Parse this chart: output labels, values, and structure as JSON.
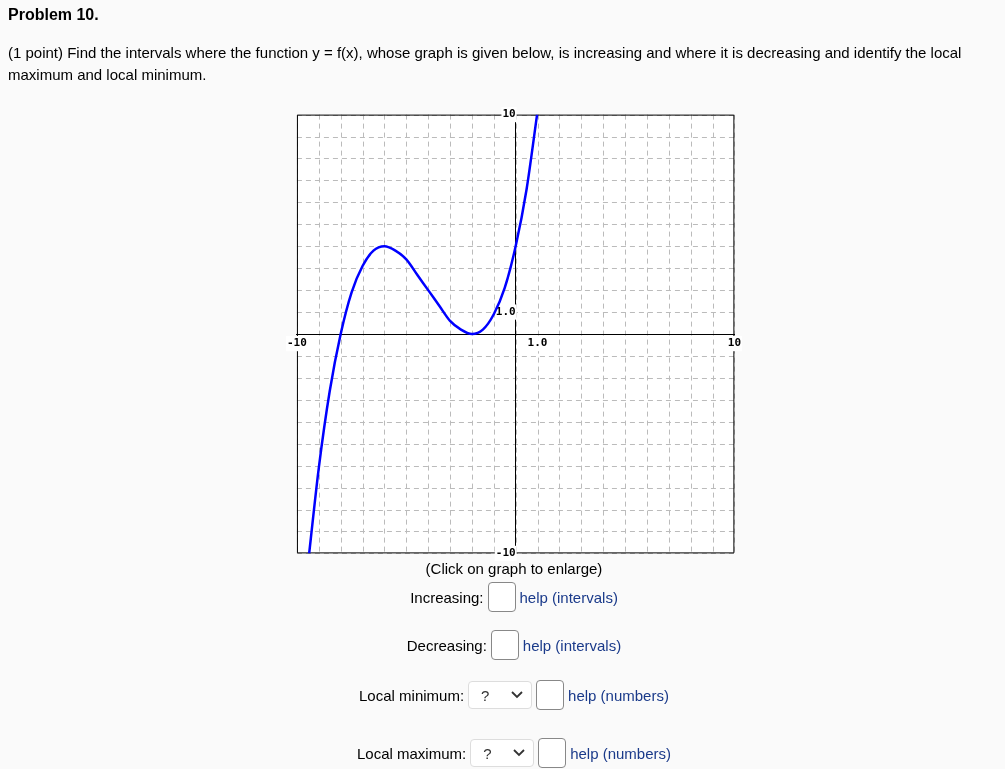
{
  "chart_data": {
    "type": "line",
    "title": "Problem 10.",
    "subtitle": "(1 point) Find the intervals where the function y = f(x), whose graph is given below, is increasing and where it is decreasing and identify the local maximum and local minimum.",
    "annotations": [
      "(Click on graph to enlarge)",
      "Increasing:",
      "help (intervals)",
      "Decreasing:",
      "help (intervals)",
      "Local minimum:",
      "?",
      "help (numbers)",
      "Local maximum:",
      "?",
      "help (numbers)"
    ],
    "x": [
      -9.44,
      -9,
      -8.5,
      -8,
      -7.5,
      -7,
      -6.5,
      -6,
      -5.5,
      -5,
      -4.5,
      -4,
      -3.5,
      -3,
      -2.5,
      -2,
      -1.5,
      -1,
      -0.5,
      0,
      0.5,
      0.98
    ],
    "values": [
      -10,
      -6.1,
      -2.6,
      0,
      1.9,
      3.1,
      3.8,
      4,
      3.8,
      3.4,
      2.7,
      2,
      1.3,
      0.6,
      0.2,
      0,
      0.2,
      0.9,
      2.1,
      4,
      6.6,
      10
    ],
    "color": "#0000ff",
    "xlim": [
      -10,
      10
    ],
    "ylim": [
      -10,
      10
    ],
    "xticks": [
      {
        "value": -10,
        "label": "-10"
      },
      {
        "value": -9,
        "label": null
      },
      {
        "value": -8,
        "label": null
      },
      {
        "value": -7,
        "label": null
      },
      {
        "value": -6,
        "label": null
      },
      {
        "value": -5,
        "label": null
      },
      {
        "value": -4,
        "label": null
      },
      {
        "value": -3,
        "label": null
      },
      {
        "value": -2,
        "label": null
      },
      {
        "value": -1,
        "label": null
      },
      {
        "value": 0,
        "label": null
      },
      {
        "value": 1,
        "label": "1.0"
      },
      {
        "value": 2,
        "label": null
      },
      {
        "value": 3,
        "label": null
      },
      {
        "value": 4,
        "label": null
      },
      {
        "value": 5,
        "label": null
      },
      {
        "value": 6,
        "label": null
      },
      {
        "value": 7,
        "label": null
      },
      {
        "value": 8,
        "label": null
      },
      {
        "value": 9,
        "label": null
      },
      {
        "value": 10,
        "label": "10"
      }
    ],
    "yticks": [
      {
        "value": -10,
        "label": "-10"
      },
      {
        "value": -9,
        "label": null
      },
      {
        "value": -8,
        "label": null
      },
      {
        "value": -7,
        "label": null
      },
      {
        "value": -6,
        "label": null
      },
      {
        "value": -5,
        "label": null
      },
      {
        "value": -4,
        "label": null
      },
      {
        "value": -3,
        "label": null
      },
      {
        "value": -2,
        "label": null
      },
      {
        "value": -1,
        "label": null
      },
      {
        "value": 0,
        "label": null
      },
      {
        "value": 1,
        "label": "1.0"
      },
      {
        "value": 2,
        "label": null
      },
      {
        "value": 3,
        "label": null
      },
      {
        "value": 4,
        "label": null
      },
      {
        "value": 5,
        "label": null
      },
      {
        "value": 6,
        "label": null
      },
      {
        "value": 7,
        "label": null
      },
      {
        "value": 8,
        "label": null
      },
      {
        "value": 9,
        "label": null
      },
      {
        "value": 10,
        "label": "10"
      }
    ],
    "grid": true
  }
}
